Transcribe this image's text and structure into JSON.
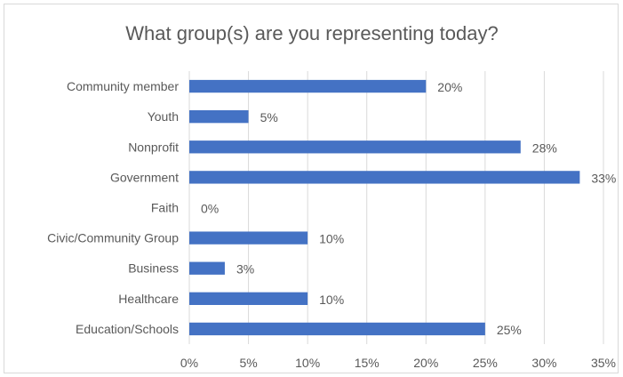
{
  "chart_data": {
    "type": "bar",
    "orientation": "horizontal",
    "title": "What group(s) are you representing today?",
    "categories": [
      "Community member",
      "Youth",
      "Nonprofit",
      "Government",
      "Faith",
      "Civic/Community Group",
      "Business",
      "Healthcare",
      "Education/Schools"
    ],
    "values": [
      20,
      5,
      28,
      33,
      0,
      10,
      3,
      10,
      25
    ],
    "value_labels": [
      "20%",
      "5%",
      "28%",
      "33%",
      "0%",
      "10%",
      "3%",
      "10%",
      "25%"
    ],
    "x_ticks": [
      "0%",
      "5%",
      "10%",
      "15%",
      "20%",
      "25%",
      "30%",
      "35%"
    ],
    "xlim": [
      0,
      35
    ],
    "grid": true,
    "legend": "none",
    "bar_color": "#4472c4",
    "grid_color": "#d9d9d9",
    "text_color": "#595959"
  }
}
